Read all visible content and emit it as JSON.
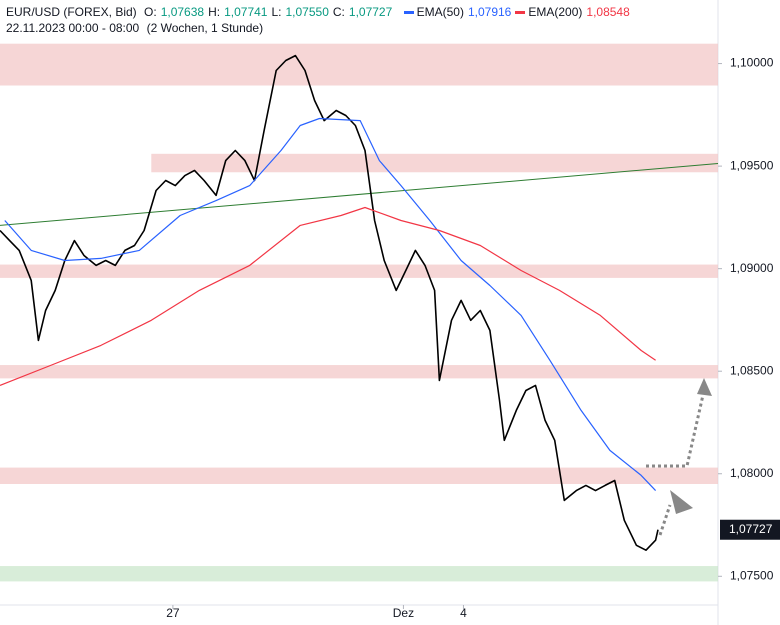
{
  "header": {
    "symbol": "EUR/USD (FOREX, Bid)",
    "ohlc": [
      {
        "key": "O:",
        "label": "1,07638"
      },
      {
        "key": "H:",
        "label": "1,07741"
      },
      {
        "key": "L:",
        "label": "1,07550"
      },
      {
        "key": "C:",
        "label": "1,07727"
      }
    ],
    "date": "22.11.2023 00:00 - 08:00",
    "range": "(2 Wochen, 1 Stunde)"
  },
  "chart_data": {
    "type": "line",
    "xlim": [
      0,
      299
    ],
    "ylim": [
      1.0736,
      1.1031
    ],
    "xticks": [
      {
        "value": 72,
        "label": "27"
      },
      {
        "value": 168,
        "label": "Dez"
      },
      {
        "value": 193,
        "label": "4"
      }
    ],
    "yticks": [
      {
        "value": 1.1,
        "label": "1,10000"
      },
      {
        "value": 1.095,
        "label": "1,09500"
      },
      {
        "value": 1.09,
        "label": "1,09000"
      },
      {
        "value": 1.085,
        "label": "1,08500"
      },
      {
        "value": 1.08,
        "label": "1,08000"
      },
      {
        "value": 1.075,
        "label": "1,07500"
      }
    ],
    "last": {
      "value": 1.07727,
      "label": "1,07727"
    },
    "zones": [
      {
        "from": 0,
        "to": 299,
        "low": 1.09893,
        "high": 1.10097,
        "color": "#f2c4c4"
      },
      {
        "from": 63,
        "to": 299,
        "low": 1.0947,
        "high": 1.0956,
        "color": "#f2c4c4"
      },
      {
        "from": 0,
        "to": 299,
        "low": 1.08955,
        "high": 1.0902,
        "color": "#f2c4c4"
      },
      {
        "from": 0,
        "to": 299,
        "low": 1.08465,
        "high": 1.0853,
        "color": "#f2c4c4"
      },
      {
        "from": 0,
        "to": 299,
        "low": 1.0795,
        "high": 1.0803,
        "color": "#f2c4c4"
      },
      {
        "from": 0,
        "to": 299,
        "low": 1.07475,
        "high": 1.0755,
        "color": "#c8e6c9"
      }
    ],
    "trendline": {
      "x": [
        0,
        299
      ],
      "values": [
        1.09211,
        1.09513
      ],
      "color": "#2e7d32"
    },
    "series": [
      {
        "color": "#000000",
        "x": [
          0,
          4,
          8,
          13,
          16,
          19,
          23,
          27,
          31,
          35,
          40,
          44,
          48,
          52,
          56,
          60,
          65,
          69,
          73,
          77,
          81,
          85,
          90,
          94,
          98,
          102,
          106,
          110,
          115,
          119,
          123,
          127,
          131,
          135,
          140,
          144,
          148,
          152,
          156,
          160,
          165,
          169,
          173,
          177,
          181,
          183,
          188,
          192,
          196,
          200,
          204,
          208,
          210,
          215,
          219,
          223,
          227,
          231,
          235,
          240,
          244,
          248,
          252,
          256,
          260,
          265,
          269,
          273,
          274
        ],
        "values": [
          1.09186,
          1.09137,
          1.09089,
          1.08943,
          1.0865,
          1.08796,
          1.08894,
          1.0904,
          1.09137,
          1.09064,
          1.09016,
          1.0904,
          1.09016,
          1.09089,
          1.09113,
          1.09186,
          1.09381,
          1.0943,
          1.09405,
          1.09454,
          1.09479,
          1.0943,
          1.09357,
          1.09527,
          1.09576,
          1.09527,
          1.0943,
          1.09673,
          1.09966,
          1.10015,
          1.10039,
          1.09966,
          1.0982,
          1.09722,
          1.09771,
          1.09747,
          1.09698,
          1.09576,
          1.09235,
          1.0904,
          1.08894,
          1.08991,
          1.09089,
          1.09016,
          1.08894,
          1.08455,
          1.08748,
          1.08845,
          1.08748,
          1.08796,
          1.08699,
          1.08358,
          1.08163,
          1.08309,
          1.08406,
          1.08431,
          1.0826,
          1.08163,
          1.0787,
          1.07918,
          1.07943,
          1.07918,
          1.07943,
          1.07967,
          1.07773,
          1.07651,
          1.07627,
          1.07676,
          1.07727
        ]
      },
      {
        "name": "EMA(50)",
        "last_label": "1,07916",
        "color": "#2962ff",
        "x": [
          2,
          13,
          27,
          42,
          58,
          75,
          90,
          104,
          117,
          125,
          133,
          150,
          158,
          167,
          179,
          192,
          204,
          217,
          229,
          242,
          254,
          267,
          273
        ],
        "values": [
          1.09235,
          1.09089,
          1.0904,
          1.0905,
          1.09089,
          1.09259,
          1.09332,
          1.09405,
          1.09576,
          1.09698,
          1.09732,
          1.09722,
          1.09527,
          1.09405,
          1.09235,
          1.0904,
          1.08918,
          1.08772,
          1.08553,
          1.08309,
          1.08114,
          1.07992,
          1.07918
        ]
      },
      {
        "name": "EMA(200)",
        "last_label": "1,08548",
        "color": "#f23645",
        "x": [
          0,
          21,
          42,
          63,
          83,
          104,
          125,
          142,
          152,
          167,
          183,
          200,
          217,
          233,
          250,
          267,
          273
        ],
        "values": [
          1.08431,
          1.08528,
          1.08626,
          1.08748,
          1.08894,
          1.09016,
          1.09211,
          1.09259,
          1.09298,
          1.09235,
          1.09186,
          1.09113,
          1.08991,
          1.08894,
          1.08772,
          1.08601,
          1.08553
        ]
      }
    ]
  }
}
